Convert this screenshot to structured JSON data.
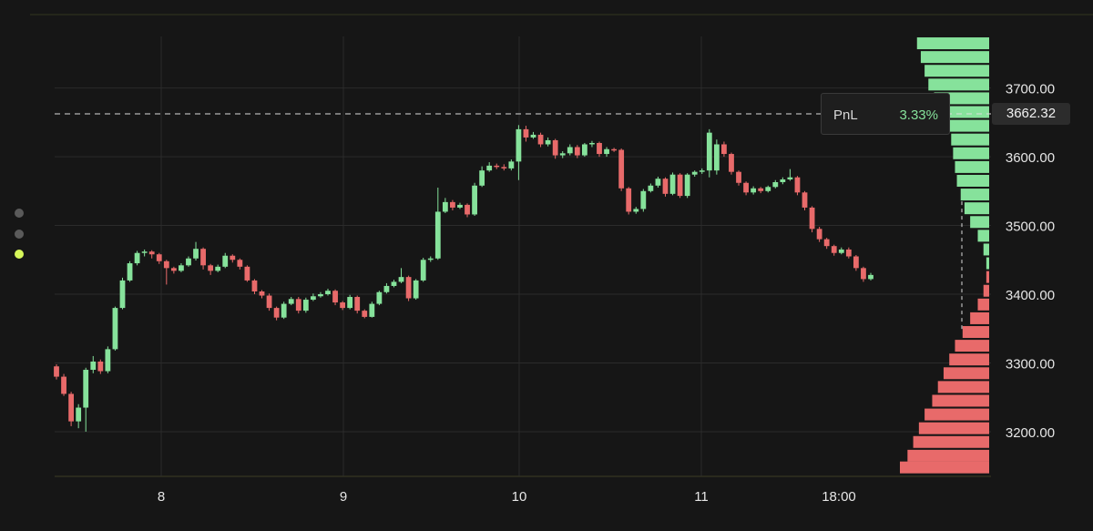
{
  "colors": {
    "background": "#161616",
    "grid": "#2b2b2b",
    "up": "#86e29b",
    "down": "#e86a6a",
    "text": "#e6e6e6",
    "accent_dot": "#d6f65a",
    "dot": "#5a5a5a"
  },
  "pnl": {
    "label": "PnL",
    "value": "3.33%"
  },
  "current_price": "3662.32",
  "side_dots": [
    {
      "state": "inactive"
    },
    {
      "state": "inactive"
    },
    {
      "state": "active"
    }
  ],
  "chart_data": {
    "type": "candlestick",
    "y_axis": {
      "min": 3135,
      "max": 3775,
      "ticks": [
        "3200.00",
        "3300.00",
        "3400.00",
        "3500.00",
        "3600.00",
        "3700.00"
      ]
    },
    "x_axis": {
      "ticks": [
        "8",
        "9",
        "10",
        "11",
        "18:00"
      ]
    },
    "reference_line": 3662.32,
    "candles": [
      [
        3295,
        3280,
        3298,
        3276
      ],
      [
        3280,
        3255,
        3284,
        3252
      ],
      [
        3255,
        3215,
        3258,
        3208
      ],
      [
        3215,
        3235,
        3240,
        3205
      ],
      [
        3235,
        3290,
        3293,
        3200
      ],
      [
        3290,
        3302,
        3310,
        3285
      ],
      [
        3302,
        3288,
        3305,
        3284
      ],
      [
        3288,
        3320,
        3324,
        3285
      ],
      [
        3320,
        3380,
        3382,
        3318
      ],
      [
        3380,
        3420,
        3424,
        3378
      ],
      [
        3420,
        3445,
        3448,
        3418
      ],
      [
        3445,
        3460,
        3463,
        3442
      ],
      [
        3460,
        3462,
        3465,
        3455
      ],
      [
        3462,
        3458,
        3464,
        3452
      ],
      [
        3458,
        3448,
        3460,
        3444
      ],
      [
        3448,
        3438,
        3450,
        3414
      ],
      [
        3438,
        3434,
        3440,
        3430
      ],
      [
        3434,
        3442,
        3445,
        3432
      ],
      [
        3442,
        3452,
        3455,
        3440
      ],
      [
        3452,
        3466,
        3476,
        3449
      ],
      [
        3466,
        3442,
        3468,
        3436
      ],
      [
        3442,
        3434,
        3444,
        3428
      ],
      [
        3434,
        3440,
        3443,
        3432
      ],
      [
        3440,
        3456,
        3460,
        3438
      ],
      [
        3456,
        3450,
        3458,
        3446
      ],
      [
        3450,
        3440,
        3452,
        3436
      ],
      [
        3440,
        3420,
        3442,
        3418
      ],
      [
        3420,
        3404,
        3422,
        3400
      ],
      [
        3404,
        3398,
        3406,
        3394
      ],
      [
        3398,
        3380,
        3401,
        3376
      ],
      [
        3380,
        3366,
        3382,
        3362
      ],
      [
        3366,
        3386,
        3389,
        3364
      ],
      [
        3386,
        3393,
        3396,
        3384
      ],
      [
        3393,
        3376,
        3396,
        3372
      ],
      [
        3376,
        3392,
        3395,
        3373
      ],
      [
        3392,
        3397,
        3401,
        3390
      ],
      [
        3397,
        3400,
        3403,
        3395
      ],
      [
        3400,
        3405,
        3408,
        3398
      ],
      [
        3405,
        3388,
        3407,
        3384
      ],
      [
        3388,
        3380,
        3390,
        3377
      ],
      [
        3380,
        3396,
        3399,
        3378
      ],
      [
        3396,
        3376,
        3398,
        3372
      ],
      [
        3376,
        3367,
        3378,
        3365
      ],
      [
        3367,
        3386,
        3389,
        3366
      ],
      [
        3386,
        3403,
        3405,
        3384
      ],
      [
        3403,
        3412,
        3416,
        3401
      ],
      [
        3412,
        3418,
        3421,
        3410
      ],
      [
        3418,
        3425,
        3438,
        3416
      ],
      [
        3425,
        3394,
        3427,
        3390
      ],
      [
        3394,
        3420,
        3422,
        3392
      ],
      [
        3420,
        3450,
        3453,
        3418
      ],
      [
        3450,
        3452,
        3455,
        3447
      ],
      [
        3452,
        3520,
        3555,
        3450
      ],
      [
        3520,
        3534,
        3540,
        3518
      ],
      [
        3534,
        3526,
        3537,
        3522
      ],
      [
        3526,
        3530,
        3533,
        3524
      ],
      [
        3530,
        3516,
        3532,
        3512
      ],
      [
        3516,
        3558,
        3562,
        3514
      ],
      [
        3558,
        3580,
        3586,
        3556
      ],
      [
        3580,
        3587,
        3592,
        3578
      ],
      [
        3587,
        3585,
        3590,
        3582
      ],
      [
        3585,
        3583,
        3589,
        3580
      ],
      [
        3583,
        3593,
        3596,
        3580
      ],
      [
        3593,
        3640,
        3646,
        3566
      ],
      [
        3640,
        3628,
        3645,
        3622
      ],
      [
        3628,
        3632,
        3636,
        3626
      ],
      [
        3632,
        3618,
        3635,
        3614
      ],
      [
        3618,
        3624,
        3628,
        3615
      ],
      [
        3624,
        3602,
        3626,
        3597
      ],
      [
        3602,
        3605,
        3608,
        3598
      ],
      [
        3605,
        3614,
        3618,
        3602
      ],
      [
        3614,
        3602,
        3617,
        3598
      ],
      [
        3602,
        3618,
        3620,
        3600
      ],
      [
        3618,
        3620,
        3623,
        3614
      ],
      [
        3620,
        3604,
        3622,
        3600
      ],
      [
        3604,
        3611,
        3614,
        3600
      ],
      [
        3611,
        3610,
        3613,
        3607
      ],
      [
        3610,
        3554,
        3612,
        3550
      ],
      [
        3554,
        3520,
        3556,
        3516
      ],
      [
        3520,
        3524,
        3527,
        3517
      ],
      [
        3524,
        3550,
        3553,
        3520
      ],
      [
        3550,
        3558,
        3561,
        3548
      ],
      [
        3558,
        3568,
        3571,
        3555
      ],
      [
        3568,
        3546,
        3570,
        3542
      ],
      [
        3546,
        3574,
        3577,
        3544
      ],
      [
        3574,
        3543,
        3576,
        3540
      ],
      [
        3543,
        3574,
        3576,
        3540
      ],
      [
        3574,
        3578,
        3580,
        3571
      ],
      [
        3578,
        3580,
        3583,
        3575
      ],
      [
        3580,
        3635,
        3640,
        3570
      ],
      [
        3580,
        3618,
        3625,
        3574
      ],
      [
        3618,
        3604,
        3622,
        3600
      ],
      [
        3604,
        3578,
        3606,
        3574
      ],
      [
        3578,
        3562,
        3580,
        3558
      ],
      [
        3562,
        3548,
        3564,
        3544
      ],
      [
        3548,
        3554,
        3557,
        3545
      ],
      [
        3554,
        3550,
        3556,
        3547
      ],
      [
        3550,
        3556,
        3558,
        3548
      ],
      [
        3556,
        3563,
        3566,
        3554
      ],
      [
        3563,
        3567,
        3570,
        3560
      ],
      [
        3567,
        3570,
        3582,
        3565
      ],
      [
        3570,
        3548,
        3572,
        3544
      ],
      [
        3548,
        3526,
        3550,
        3522
      ],
      [
        3526,
        3495,
        3528,
        3490
      ],
      [
        3495,
        3480,
        3498,
        3476
      ],
      [
        3480,
        3470,
        3482,
        3466
      ],
      [
        3470,
        3460,
        3472,
        3456
      ],
      [
        3460,
        3465,
        3468,
        3458
      ],
      [
        3465,
        3455,
        3468,
        3452
      ],
      [
        3455,
        3438,
        3457,
        3434
      ],
      [
        3438,
        3422,
        3440,
        3418
      ],
      [
        3422,
        3428,
        3431,
        3420
      ]
    ],
    "volume_profile": [
      {
        "price": 3765,
        "volume": 76,
        "side": "up"
      },
      {
        "price": 3745,
        "volume": 72,
        "side": "up"
      },
      {
        "price": 3725,
        "volume": 68,
        "side": "up"
      },
      {
        "price": 3705,
        "volume": 64,
        "side": "up"
      },
      {
        "price": 3685,
        "volume": 58,
        "side": "up"
      },
      {
        "price": 3665,
        "volume": 50,
        "side": "up"
      },
      {
        "price": 3645,
        "volume": 44,
        "side": "up"
      },
      {
        "price": 3625,
        "volume": 40,
        "side": "up"
      },
      {
        "price": 3605,
        "volume": 38,
        "side": "up"
      },
      {
        "price": 3585,
        "volume": 36,
        "side": "up"
      },
      {
        "price": 3565,
        "volume": 34,
        "side": "up"
      },
      {
        "price": 3545,
        "volume": 30,
        "side": "up"
      },
      {
        "price": 3525,
        "volume": 26,
        "side": "up"
      },
      {
        "price": 3505,
        "volume": 20,
        "side": "up"
      },
      {
        "price": 3485,
        "volume": 12,
        "side": "up"
      },
      {
        "price": 3465,
        "volume": 6,
        "side": "up"
      },
      {
        "price": 3445,
        "volume": 3,
        "side": "up"
      },
      {
        "price": 3425,
        "volume": 3,
        "side": "down"
      },
      {
        "price": 3405,
        "volume": 6,
        "side": "down"
      },
      {
        "price": 3385,
        "volume": 12,
        "side": "down"
      },
      {
        "price": 3365,
        "volume": 20,
        "side": "down"
      },
      {
        "price": 3345,
        "volume": 28,
        "side": "down"
      },
      {
        "price": 3325,
        "volume": 36,
        "side": "down"
      },
      {
        "price": 3305,
        "volume": 42,
        "side": "down"
      },
      {
        "price": 3285,
        "volume": 48,
        "side": "down"
      },
      {
        "price": 3265,
        "volume": 54,
        "side": "down"
      },
      {
        "price": 3245,
        "volume": 60,
        "side": "down"
      },
      {
        "price": 3225,
        "volume": 68,
        "side": "down"
      },
      {
        "price": 3205,
        "volume": 74,
        "side": "down"
      },
      {
        "price": 3185,
        "volume": 80,
        "side": "down"
      },
      {
        "price": 3165,
        "volume": 86,
        "side": "down"
      },
      {
        "price": 3148,
        "volume": 94,
        "side": "down"
      }
    ]
  }
}
